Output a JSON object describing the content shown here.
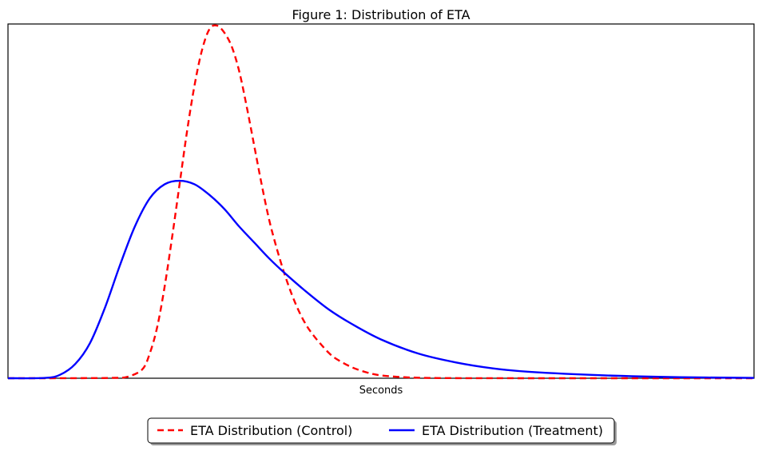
{
  "chart_data": {
    "type": "line",
    "title": "Figure 1: Distribution of ETA",
    "xlabel": "Seconds",
    "ylabel": "",
    "xticks": [],
    "yticks": [],
    "xlim": [
      0,
      100
    ],
    "ylim": [
      0,
      1.0
    ],
    "grid": false,
    "legend_position": "bottom-center, outside plot",
    "series": [
      {
        "name": "ETA Distribution (Control)",
        "color": "#ff0000",
        "style": "dashed",
        "x": [
          0,
          5,
          10,
          14,
          16,
          18,
          19,
          20,
          21,
          22,
          23,
          24,
          25,
          26,
          27,
          28,
          29,
          30,
          31,
          32,
          33,
          34,
          35,
          36,
          37,
          38,
          39,
          40,
          41,
          42,
          43,
          44,
          46,
          48,
          50,
          53,
          56,
          60,
          70,
          80,
          90,
          100
        ],
        "values": [
          0,
          0,
          0.0003,
          0.001,
          0.004,
          0.025,
          0.07,
          0.145,
          0.26,
          0.4,
          0.55,
          0.7,
          0.83,
          0.93,
          0.99,
          1.0,
          0.98,
          0.94,
          0.87,
          0.77,
          0.66,
          0.55,
          0.45,
          0.37,
          0.3,
          0.24,
          0.19,
          0.15,
          0.12,
          0.095,
          0.072,
          0.055,
          0.032,
          0.017,
          0.008,
          0.003,
          0.001,
          0.0003,
          0,
          0,
          0,
          0
        ]
      },
      {
        "name": "ETA Distribution (Treatment)",
        "color": "#0000ff",
        "style": "solid",
        "x": [
          0,
          5,
          7,
          9,
          11,
          13,
          15,
          17,
          19,
          21,
          23,
          25,
          27,
          29,
          31,
          33,
          35,
          37,
          40,
          43,
          46,
          50,
          55,
          60,
          65,
          70,
          80,
          90,
          100
        ],
        "values": [
          0,
          0.001,
          0.01,
          0.04,
          0.1,
          0.2,
          0.32,
          0.43,
          0.51,
          0.55,
          0.56,
          0.55,
          0.52,
          0.48,
          0.43,
          0.385,
          0.34,
          0.3,
          0.245,
          0.195,
          0.155,
          0.11,
          0.07,
          0.045,
          0.028,
          0.018,
          0.008,
          0.003,
          0.001
        ]
      }
    ]
  }
}
